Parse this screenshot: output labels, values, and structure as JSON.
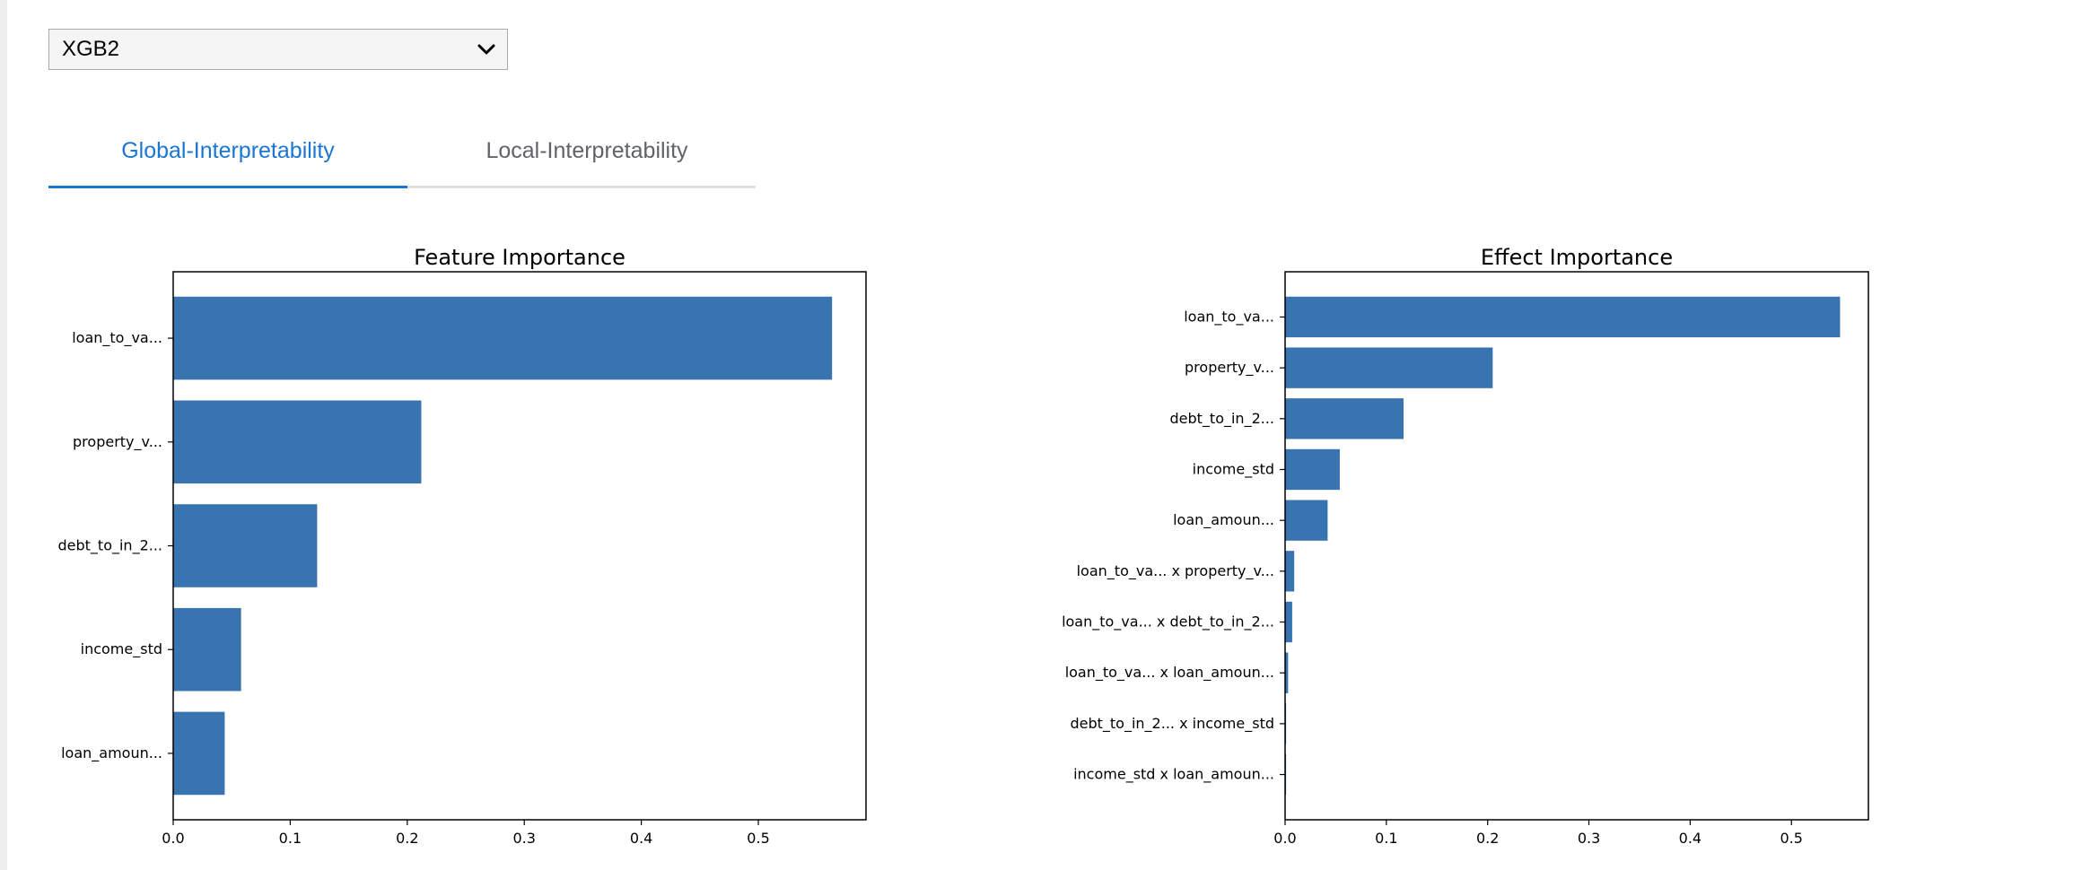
{
  "model_select": {
    "value": "XGB2",
    "icon": "chevron-down-icon"
  },
  "tabs": [
    {
      "label": "Global-Interpretability",
      "active": true
    },
    {
      "label": "Local-Interpretability",
      "active": false
    }
  ],
  "colors": {
    "bar": "#3874af",
    "accent": "#1976d2",
    "tab_inactive": "#5f6368"
  },
  "chart_data": [
    {
      "type": "bar",
      "orientation": "horizontal",
      "title": "Feature Importance",
      "categories": [
        "loan_to_va...",
        "property_v...",
        "debt_to_in_2...",
        "income_std",
        "loan_amoun..."
      ],
      "values": [
        0.563,
        0.212,
        0.123,
        0.058,
        0.044
      ],
      "xlim": [
        0,
        0.592
      ],
      "xticks": [
        "0.0",
        "0.1",
        "0.2",
        "0.3",
        "0.4",
        "0.5"
      ],
      "xlabel": "",
      "ylabel": ""
    },
    {
      "type": "bar",
      "orientation": "horizontal",
      "title": "Effect Importance",
      "categories": [
        "loan_to_va...",
        "property_v...",
        "debt_to_in_2...",
        "income_std",
        "loan_amoun...",
        "loan_to_va... x property_v...",
        "loan_to_va... x debt_to_in_2...",
        "loan_to_va... x loan_amoun...",
        "debt_to_in_2... x income_std",
        "income_std x loan_amoun..."
      ],
      "values": [
        0.548,
        0.205,
        0.117,
        0.054,
        0.042,
        0.009,
        0.007,
        0.003,
        0.001,
        0.001
      ],
      "xlim": [
        0,
        0.576
      ],
      "xticks": [
        "0.0",
        "0.1",
        "0.2",
        "0.3",
        "0.4",
        "0.5"
      ],
      "xlabel": "",
      "ylabel": ""
    }
  ]
}
